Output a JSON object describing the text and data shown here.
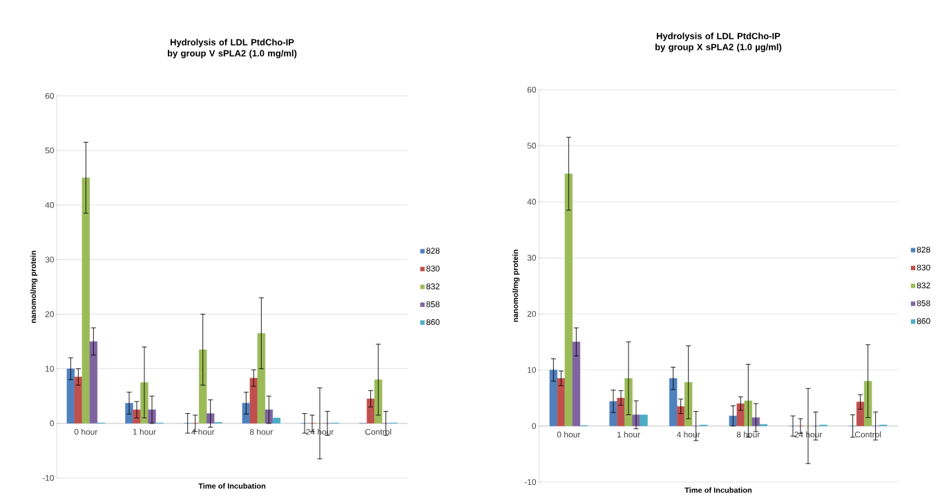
{
  "chart_data": [
    {
      "type": "bar",
      "title": "Hydrolysis of LDL PtdCho-IP by group V sPLA2 (1.0 mg/ml)",
      "xlabel": "Time of Incubation",
      "ylabel": "nanomol/mg protein",
      "categories": [
        "0 hour",
        "1 hour",
        "4 hour",
        "8 hour",
        "24 hour",
        "Control"
      ],
      "series": [
        {
          "name": "828",
          "color": "#4f81bd",
          "values": [
            10,
            3.7,
            0,
            3.7,
            0,
            0
          ],
          "errors": [
            2,
            2,
            1.8,
            2,
            1.8,
            null
          ]
        },
        {
          "name": "830",
          "color": "#c0504d",
          "values": [
            8.5,
            2.5,
            0,
            8.3,
            0,
            4.5
          ],
          "errors": [
            1.5,
            1.5,
            1.5,
            1.5,
            1.5,
            1.5
          ]
        },
        {
          "name": "832",
          "color": "#9bbb59",
          "values": [
            45,
            7.5,
            13.5,
            16.5,
            0,
            8
          ],
          "errors": [
            6.5,
            6.5,
            6.5,
            6.5,
            6.5,
            6.5
          ]
        },
        {
          "name": "858",
          "color": "#8064a2",
          "values": [
            15,
            2.5,
            1.8,
            2.5,
            0,
            0
          ],
          "errors": [
            2.5,
            2.5,
            2.5,
            2.5,
            2.2,
            2.2
          ]
        },
        {
          "name": "860",
          "color": "#4bacc6",
          "values": [
            0.1,
            0.1,
            0.2,
            1,
            0.1,
            0.1
          ]
        }
      ],
      "ylim": [
        -10,
        60
      ],
      "yticks": [
        -10,
        0,
        10,
        20,
        30,
        40,
        50,
        60
      ],
      "grid": "y",
      "legend": "right"
    },
    {
      "type": "bar",
      "title": "Hydrolysis of LDL PtdCho-IP by group X sPLA2 (1.0 µg/ml)",
      "xlabel": "Time of Incubation",
      "ylabel": "nanomol/mg protein",
      "categories": [
        "0 hour",
        "1 hour",
        "4 hour",
        "8 hour",
        "24 hour",
        "Control"
      ],
      "series": [
        {
          "name": "828",
          "color": "#4f81bd",
          "values": [
            10,
            4.4,
            8.5,
            1.8,
            0,
            0
          ],
          "errors": [
            2,
            2,
            2,
            1.8,
            1.8,
            2
          ]
        },
        {
          "name": "830",
          "color": "#c0504d",
          "values": [
            8.5,
            5,
            3.5,
            4,
            0,
            4.3
          ],
          "errors": [
            1.3,
            1.3,
            1.3,
            1.2,
            1.3,
            1.3
          ]
        },
        {
          "name": "832",
          "color": "#9bbb59",
          "values": [
            45,
            8.5,
            7.8,
            4.5,
            0,
            8
          ],
          "errors": [
            6.5,
            6.5,
            6.5,
            6.5,
            6.7,
            6.5
          ]
        },
        {
          "name": "858",
          "color": "#8064a2",
          "values": [
            15,
            2,
            0,
            1.5,
            0,
            0
          ],
          "errors": [
            2.5,
            2.5,
            2.6,
            2.5,
            2.5,
            2.5
          ]
        },
        {
          "name": "860",
          "color": "#4bacc6",
          "values": [
            0.1,
            2,
            0.2,
            0.3,
            0.2,
            0.2
          ]
        }
      ],
      "ylim": [
        -10,
        60
      ],
      "yticks": [
        -10,
        0,
        10,
        20,
        30,
        40,
        50,
        60
      ],
      "grid": "y",
      "legend": "right"
    }
  ]
}
